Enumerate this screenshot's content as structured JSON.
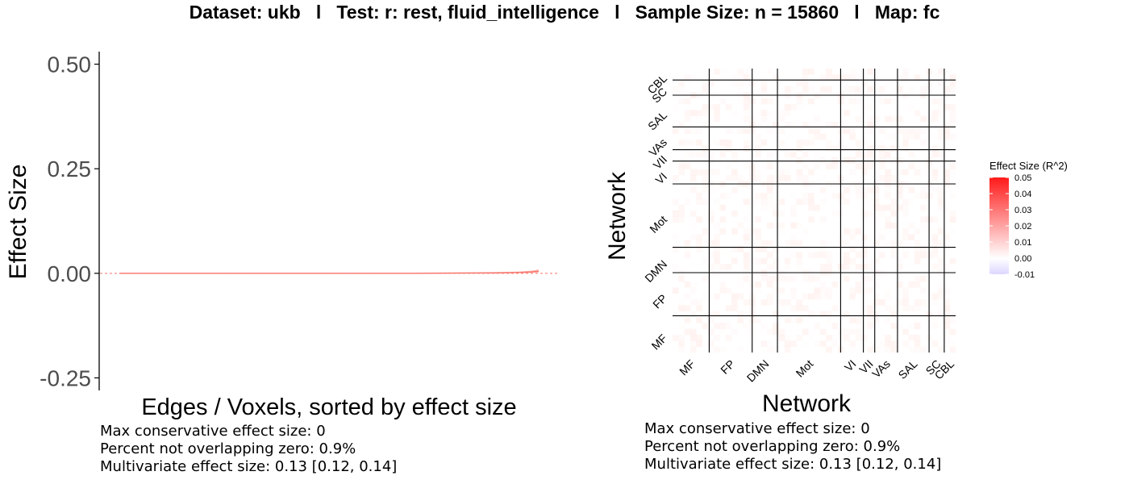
{
  "title": {
    "dataset": "Dataset: ukb",
    "test": "Test: r: rest, fluid_intelligence",
    "sample": "Sample Size: n = 15860",
    "map": "Map: fc",
    "sep": "l"
  },
  "colors": {
    "line": "#f8766d",
    "ci": "#fbb8b2",
    "axis": "#000000",
    "tick_text": "#4d4d4d",
    "matrix_lines": "#000000",
    "scale_low": "#ddd6ff",
    "scale_mid": "#ffffff",
    "scale_high": "#ff1a1a"
  },
  "chart_data": [
    {
      "type": "line",
      "xlabel": "Edges / Voxels, sorted by effect size",
      "ylabel": "Effect Size",
      "ylim": [
        -0.28,
        0.53
      ],
      "yticks": [
        0.5,
        0.25,
        0.0,
        -0.25
      ],
      "ytick_labels": [
        "0.50",
        "0.25",
        "0.00",
        "-0.25"
      ],
      "xlim": [
        0,
        1
      ],
      "reference_line": 0,
      "x": [
        0,
        0.1,
        0.2,
        0.3,
        0.4,
        0.5,
        0.6,
        0.7,
        0.8,
        0.9,
        0.95,
        0.98,
        1.0
      ],
      "values": [
        0.0,
        0.0,
        0.0,
        0.0,
        0.0,
        0.0,
        0.0,
        0.0,
        0.0005,
        0.001,
        0.002,
        0.003,
        0.005
      ],
      "ci_upper": [
        0.001,
        0.001,
        0.001,
        0.001,
        0.001,
        0.001,
        0.001,
        0.0015,
        0.002,
        0.003,
        0.004,
        0.006,
        0.009
      ],
      "ci_lower": [
        -0.001,
        -0.001,
        -0.001,
        -0.001,
        -0.001,
        -0.001,
        -0.001,
        -0.001,
        -0.0005,
        0.0,
        0.0005,
        0.001,
        0.002
      ],
      "stats": [
        "Max conservative effect size: 0",
        "Percent not overlapping zero: 0.9%",
        "Multivariate effect size: 0.13 [0.12, 0.14]"
      ]
    },
    {
      "type": "heatmap",
      "xlabel": "Network",
      "ylabel": "Network",
      "networks": [
        "MF",
        "FP",
        "DMN",
        "Mot",
        "VI",
        "VII",
        "VAs",
        "SAL",
        "SC",
        "CBL"
      ],
      "network_sizes": [
        29,
        34,
        20,
        50,
        18,
        9,
        18,
        25,
        12,
        9
      ],
      "legend": {
        "title": "Effect Size (R^2)",
        "ticks": [
          0.05,
          0.04,
          0.03,
          0.02,
          0.01,
          0.0,
          -0.01
        ],
        "tick_labels": [
          "0.05",
          "0.04",
          "0.03",
          "0.02",
          "0.01",
          "0.00",
          "-0.01"
        ],
        "range": [
          -0.01,
          0.05
        ]
      },
      "stats": [
        "Max conservative effect size: 0",
        "Percent not overlapping zero: 0.9%",
        "Multivariate effect size: 0.13 [0.12, 0.14]"
      ]
    }
  ]
}
